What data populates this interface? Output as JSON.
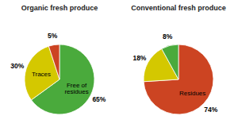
{
  "chart_data": [
    {
      "type": "pie",
      "title": "Organic fresh produce",
      "categories": [
        "Free of\nresidues",
        "Traces",
        null
      ],
      "values": [
        65,
        30,
        5
      ],
      "value_labels": [
        "65%",
        "30%",
        "5%"
      ],
      "colors": [
        "#4aaa3c",
        "#d4c800",
        "#cc4422"
      ],
      "data_labels": true
    },
    {
      "type": "pie",
      "title": "Conventional fresh produce",
      "categories": [
        "Residues",
        null,
        null
      ],
      "values": [
        74,
        18,
        8
      ],
      "value_labels": [
        "74%",
        "18%",
        "8%"
      ],
      "colors": [
        "#cc4422",
        "#d4c800",
        "#4aaa3c"
      ],
      "data_labels": true
    }
  ]
}
